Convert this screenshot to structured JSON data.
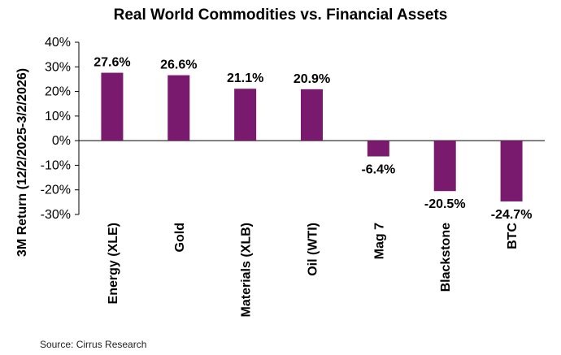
{
  "chart_data": {
    "type": "bar",
    "title": "Real World Commodities vs. Financial Assets",
    "ylabel": "3M Return (12/2/2025-3/2/2026)",
    "xlabel": "",
    "categories": [
      "Energy (XLE)",
      "Gold",
      "Materials (XLB)",
      "Oil (WTI)",
      "Mag 7",
      "Blackstone",
      "BTC"
    ],
    "values": [
      27.6,
      26.6,
      21.1,
      20.9,
      -6.4,
      -20.5,
      -24.7
    ],
    "data_labels": [
      "27.6%",
      "26.6%",
      "21.1%",
      "20.9%",
      "-6.4%",
      "-20.5%",
      "-24.7%"
    ],
    "ylim": [
      -30,
      40
    ],
    "yticks": [
      40,
      30,
      20,
      10,
      0,
      -10,
      -20,
      -30
    ],
    "ytick_labels": [
      "40%",
      "30%",
      "20%",
      "10%",
      "0%",
      "-10%",
      "-20%",
      "-30%"
    ],
    "bar_color": "#7A1A6E",
    "grid": false,
    "legend": false
  },
  "footer": {
    "source": "Source: Cirrus Research"
  }
}
